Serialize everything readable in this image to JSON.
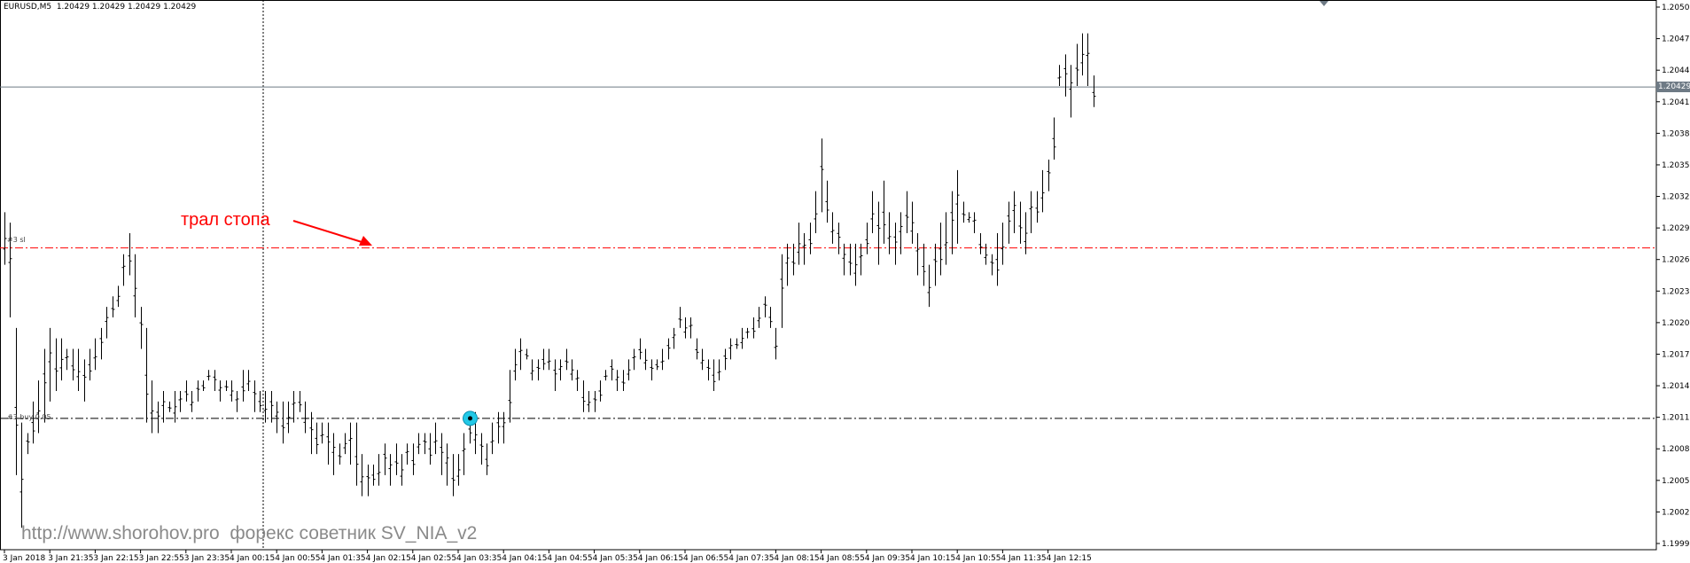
{
  "symbol_info": "EURUSD,M5  1.20429 1.20429 1.20429 1.20429",
  "watermark": "http://www.shorohov.pro  форекс советник SV_NIA_v2",
  "annotation": "трал стопа",
  "levels": {
    "stop_label": "#3 sl",
    "stop_price": 1.20276,
    "buy_label": "#3 buy 0.05",
    "buy_price": 1.20114,
    "current_price": 1.20429,
    "current_price_label": "1.20429"
  },
  "colors": {
    "stop_line": "#ff0000",
    "buy_line": "#000000",
    "current_line": "#6e7a85",
    "bars": "#000000",
    "marker_fill": "#22c8e6"
  },
  "chart_data": {
    "type": "ohlc",
    "ylim": [
      1.19995,
      1.20505
    ],
    "y_ticks": [
      "1.20505",
      "1.20475",
      "1.20445",
      "1.20415",
      "1.20385",
      "1.20355",
      "1.20325",
      "1.20295",
      "1.20265",
      "1.20235",
      "1.20205",
      "1.20175",
      "1.20145",
      "1.20115",
      "1.20085",
      "1.20055",
      "1.20025",
      "1.19995"
    ],
    "x_ticks": [
      "3 Jan 2018",
      "3 Jan 21:35",
      "3 Jan 22:15",
      "3 Jan 22:55",
      "3 Jan 23:35",
      "4 Jan 00:15",
      "4 Jan 00:55",
      "4 Jan 01:35",
      "4 Jan 02:15",
      "4 Jan 02:55",
      "4 Jan 03:35",
      "4 Jan 04:15",
      "4 Jan 04:55",
      "4 Jan 05:35",
      "4 Jan 06:15",
      "4 Jan 06:55",
      "4 Jan 07:35",
      "4 Jan 08:15",
      "4 Jan 08:55",
      "4 Jan 09:35",
      "4 Jan 10:15",
      "4 Jan 10:55",
      "4 Jan 11:35",
      "4 Jan 12:15"
    ],
    "bars_per_tick": 8,
    "marker_bar": 82,
    "lows": [
      1.2026,
      1.2021,
      1.2006,
      1.2001,
      1.2008,
      1.2009,
      1.201,
      1.2011,
      1.2013,
      1.2014,
      1.2015,
      1.2016,
      1.2015,
      1.2014,
      1.2013,
      1.2015,
      1.2016,
      1.2017,
      1.2019,
      1.2021,
      1.2022,
      1.2024,
      1.2025,
      1.2021,
      1.2018,
      1.2011,
      1.201,
      1.201,
      1.2011,
      1.2012,
      1.2011,
      1.2012,
      1.2013,
      1.2012,
      1.2013,
      1.2014,
      1.2015,
      1.2014,
      1.2013,
      1.2014,
      1.2013,
      1.2012,
      1.2013,
      1.2014,
      1.2012,
      1.2012,
      1.2011,
      1.2011,
      1.201,
      1.2009,
      1.201,
      1.2011,
      1.2012,
      1.201,
      1.2008,
      1.2008,
      1.2009,
      1.2007,
      1.2006,
      1.2007,
      1.2008,
      1.2007,
      1.2005,
      1.2004,
      1.2004,
      1.2005,
      1.2005,
      1.2006,
      1.2005,
      1.2006,
      1.2005,
      1.2007,
      1.2006,
      1.2008,
      1.2008,
      1.2007,
      1.2008,
      1.2006,
      1.2005,
      1.2004,
      1.2005,
      1.2006,
      1.2009,
      1.2008,
      1.2007,
      1.2006,
      1.2008,
      1.2009,
      1.2009,
      1.2011,
      1.2015,
      1.2016,
      1.2017,
      1.2015,
      1.2015,
      1.2016,
      1.2016,
      1.2014,
      1.2015,
      1.2016,
      1.2015,
      1.2014,
      1.2012,
      1.2012,
      1.2012,
      1.2013,
      1.2015,
      1.2015,
      1.2014,
      1.2014,
      1.2015,
      1.2016,
      1.2017,
      1.2016,
      1.2015,
      1.2016,
      1.2016,
      1.2017,
      1.2018,
      1.202,
      1.2019,
      1.2019,
      1.2017,
      1.2016,
      1.2015,
      1.2014,
      1.2015,
      1.2016,
      1.2017,
      1.2018,
      1.2018,
      1.2019,
      1.2019,
      1.202,
      1.2021,
      1.202,
      1.2017,
      1.202,
      1.2024,
      1.2025,
      1.2026,
      1.2026,
      1.2027,
      1.2029,
      1.2031,
      1.203,
      1.2028,
      1.2027,
      1.2025,
      1.2025,
      1.2024,
      1.2025,
      1.2027,
      1.2029,
      1.2026,
      1.2028,
      1.2027,
      1.2026,
      1.2027,
      1.2029,
      1.2028,
      1.2025,
      1.2024,
      1.2022,
      1.2024,
      1.2025,
      1.2026,
      1.2027,
      1.2028,
      1.203,
      1.203,
      1.2029,
      1.2027,
      1.2026,
      1.2025,
      1.2024,
      1.2026,
      1.2028,
      1.2029,
      1.2028,
      1.2027,
      1.2029,
      1.203,
      1.2031,
      1.2033,
      1.2036,
      1.2043,
      1.2042,
      1.204,
      1.2043,
      1.2044,
      1.2043,
      1.2041
    ],
    "highs": [
      1.2031,
      1.203,
      1.202,
      1.2011,
      1.201,
      1.2013,
      1.2015,
      1.2018,
      1.202,
      1.2019,
      1.2019,
      1.2018,
      1.2018,
      1.2018,
      1.2017,
      1.2018,
      1.2019,
      1.202,
      1.2022,
      1.2023,
      1.2024,
      1.2027,
      1.2029,
      1.2027,
      1.2022,
      1.202,
      1.2015,
      1.2013,
      1.2014,
      1.2013,
      1.2014,
      1.2014,
      1.2015,
      1.2014,
      1.2015,
      1.2015,
      1.2016,
      1.2016,
      1.2015,
      1.2015,
      1.2015,
      1.2014,
      1.2016,
      1.2016,
      1.2015,
      1.2014,
      1.2014,
      1.2014,
      1.2013,
      1.2013,
      1.2013,
      1.2014,
      1.2014,
      1.2013,
      1.2012,
      1.2011,
      1.2011,
      1.2011,
      1.201,
      1.2009,
      1.201,
      1.2011,
      1.2011,
      1.2008,
      1.2007,
      1.2007,
      1.2008,
      1.2009,
      1.2008,
      1.2009,
      1.2008,
      1.2009,
      1.2009,
      1.201,
      1.201,
      1.201,
      1.2011,
      1.201,
      1.2009,
      1.2008,
      1.2008,
      1.201,
      1.2012,
      1.2012,
      1.201,
      1.2009,
      1.2011,
      1.2012,
      1.2012,
      1.2016,
      1.2018,
      1.2019,
      1.2018,
      1.2017,
      1.2017,
      1.2018,
      1.2018,
      1.2017,
      1.2017,
      1.2018,
      1.2017,
      1.2016,
      1.2015,
      1.2014,
      1.2014,
      1.2015,
      1.2016,
      1.2017,
      1.2016,
      1.2016,
      1.2017,
      1.2018,
      1.2019,
      1.2018,
      1.2017,
      1.2017,
      1.2018,
      1.2019,
      1.202,
      1.2022,
      1.2021,
      1.2021,
      1.2019,
      1.2018,
      1.2017,
      1.2017,
      1.2017,
      1.2018,
      1.2019,
      1.2019,
      1.202,
      1.202,
      1.2021,
      1.2022,
      1.2023,
      1.2022,
      1.202,
      1.2027,
      1.2028,
      1.2028,
      1.203,
      1.2029,
      1.203,
      1.2033,
      1.2038,
      1.2034,
      1.2031,
      1.203,
      1.2028,
      1.2028,
      1.2028,
      1.2028,
      1.203,
      1.2033,
      1.2032,
      1.2034,
      1.2031,
      1.203,
      1.2031,
      1.2033,
      1.2032,
      1.2029,
      1.2028,
      1.2026,
      1.2028,
      1.203,
      1.2031,
      1.2033,
      1.2035,
      1.2032,
      1.2031,
      1.2031,
      1.2029,
      1.2028,
      1.2027,
      1.2029,
      1.203,
      1.2032,
      1.2033,
      1.2032,
      1.2031,
      1.2033,
      1.2033,
      1.2035,
      1.2036,
      1.204,
      1.2045,
      1.2046,
      1.2045,
      1.2047,
      1.2048,
      1.2048,
      1.2044
    ]
  }
}
